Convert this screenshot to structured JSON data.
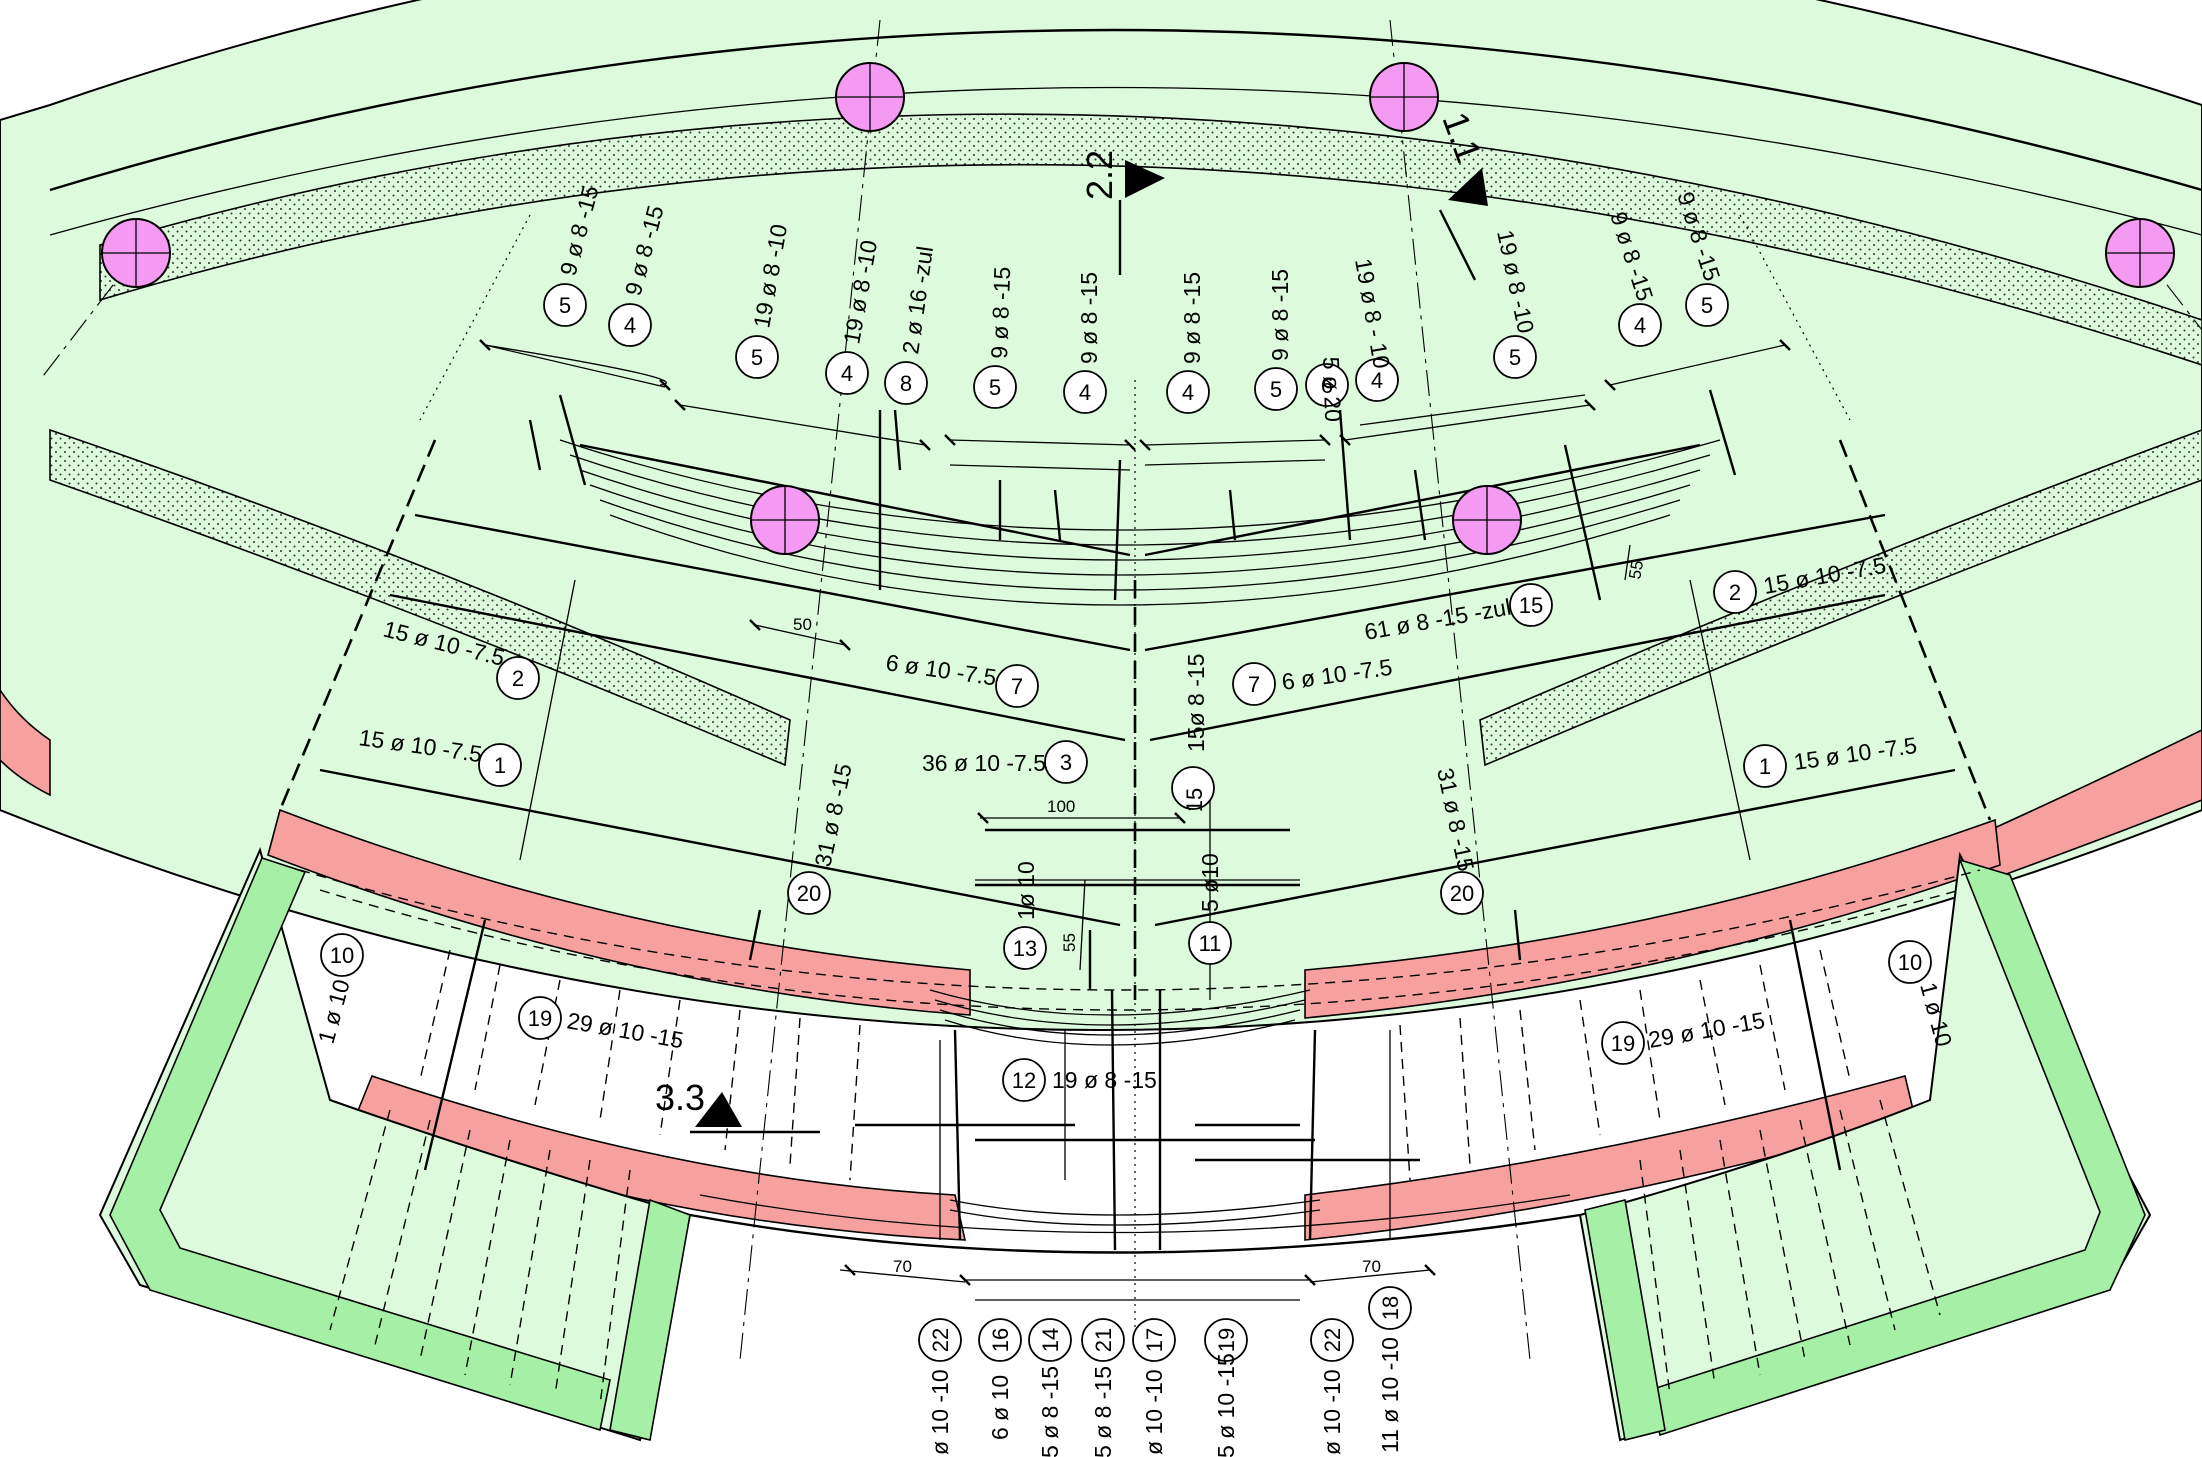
{
  "colors": {
    "background": "#ffffff",
    "slab": "#ddfadd",
    "slab_edge": "#000000",
    "band_red": "#f7a0a0",
    "band_green": "#a6efa6",
    "column": "#f49af2",
    "dots_band": "#ddfadd"
  },
  "icons": [
    "section-marker-icon",
    "column-circle-icon",
    "dimension-tick-icon"
  ],
  "sections": [
    {
      "id": "s22",
      "label": "2.2"
    },
    {
      "id": "s11",
      "label": "1.1"
    },
    {
      "id": "s33",
      "label": "3.3"
    }
  ],
  "rebar_top": [
    {
      "num": "5",
      "spec": "9 ø 8 -15"
    },
    {
      "num": "4",
      "spec": "9 ø 8 -15"
    },
    {
      "num": "5",
      "spec": "19 ø 8 -10"
    },
    {
      "num": "4",
      "spec": "19 ø 8 -10"
    },
    {
      "num": "8",
      "spec": "2 ø 16 -zul"
    },
    {
      "num": "5",
      "spec": "9 ø 8 -15"
    },
    {
      "num": "4",
      "spec": "9 ø 8 -15"
    },
    {
      "num": "4",
      "spec": "9 ø 8 -15"
    },
    {
      "num": "5",
      "spec": "9 ø 8 -15"
    },
    {
      "num": "6",
      "spec": "5 ø 20"
    },
    {
      "num": "4",
      "spec": "19 ø 8 - 10"
    },
    {
      "num": "5",
      "spec": "19 ø 8 -10"
    },
    {
      "num": "4",
      "spec": "9 ø 8 -15"
    },
    {
      "num": "5",
      "spec": "9 ø 8 -15"
    }
  ],
  "rebar_field": [
    {
      "num": "2",
      "spec": "15 ø 10 -7.5"
    },
    {
      "num": "1",
      "spec": "15 ø 10 -7.5"
    },
    {
      "num": "7",
      "spec": "6 ø 10 -7.5"
    },
    {
      "num": "3",
      "spec": "36 ø 10 -7.5"
    },
    {
      "num": "15",
      "spec": "15ø 8 -15"
    },
    {
      "num": "7",
      "spec": "6 ø 10 -7.5"
    },
    {
      "num": "15",
      "spec": "61 ø 8 -15 -zul"
    },
    {
      "num": "2",
      "spec": "15 ø 10 -7.5"
    },
    {
      "num": "1",
      "spec": "15 ø 10 -7.5"
    },
    {
      "num": "20",
      "spec": "31 ø 8 -15"
    },
    {
      "num": "20",
      "spec": "31 ø 8 -15"
    },
    {
      "num": "13",
      "spec": "1ø 10"
    },
    {
      "num": "11",
      "spec": "5 ø10"
    },
    {
      "num": "10",
      "spec": "1 ø 10"
    },
    {
      "num": "10",
      "spec": "1 ø 10"
    },
    {
      "num": "19",
      "spec": "29 ø 10 -15"
    },
    {
      "num": "19",
      "spec": "29 ø 10 -15"
    },
    {
      "num": "12",
      "spec": "19 ø 8 -15"
    }
  ],
  "rebar_bottom": [
    {
      "num": "22",
      "spec": "ø 10 -10"
    },
    {
      "num": "16",
      "spec": "6 ø 10"
    },
    {
      "num": "14",
      "spec": "5 ø 8 -15"
    },
    {
      "num": "21",
      "spec": "5 ø 8 -15"
    },
    {
      "num": "17",
      "spec": "ø 10 -10"
    },
    {
      "num": "19",
      "spec": "5 ø 10 -15"
    },
    {
      "num": "22",
      "spec": "ø 10 -10"
    },
    {
      "num": "18",
      "spec": "11 ø 10 -10"
    }
  ],
  "dimensions": {
    "d50": "50",
    "d55a": "55",
    "d55b": "55",
    "d100": "100",
    "d70a": "70",
    "d70b": "70"
  }
}
